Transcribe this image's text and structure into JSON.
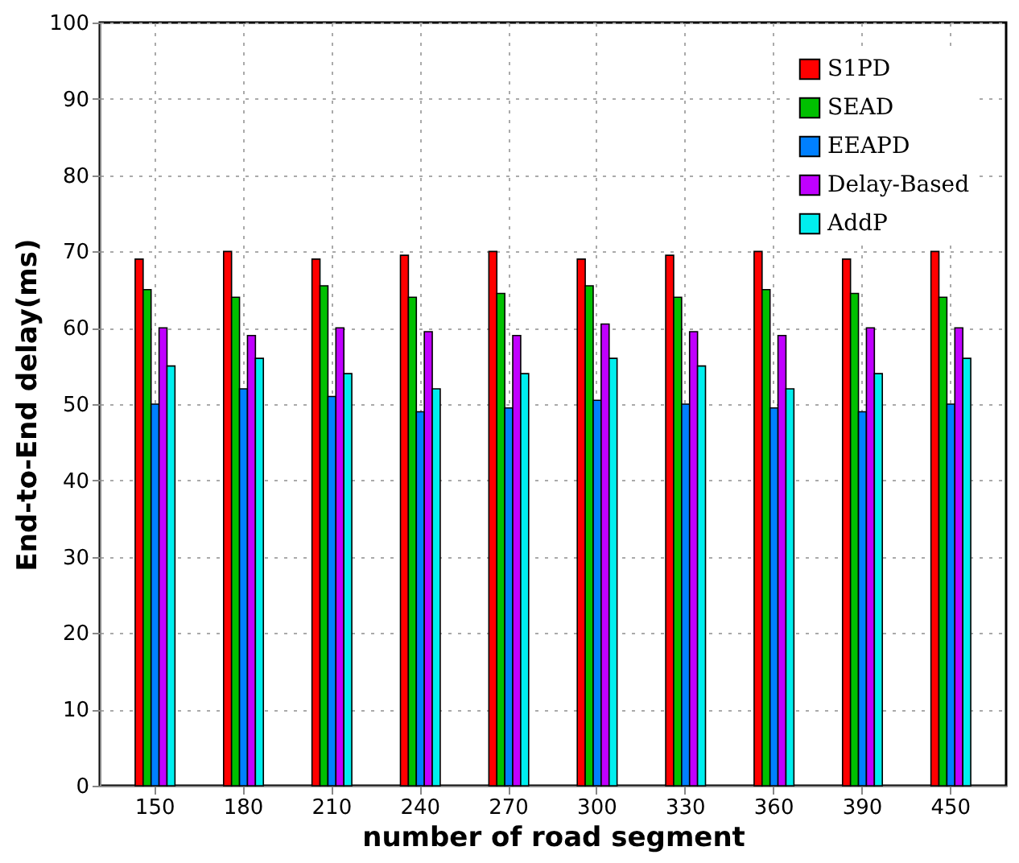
{
  "chart_data": {
    "type": "bar",
    "xlabel": "number of road segment",
    "ylabel": "End-to-End delay(ms)",
    "categories": [
      "150",
      "180",
      "210",
      "240",
      "270",
      "300",
      "330",
      "360",
      "390",
      "450"
    ],
    "series": [
      {
        "name": "S1PD",
        "color": "#ff0000",
        "values": [
          69,
          70,
          69,
          69.5,
          70,
          69,
          69.5,
          70,
          69,
          70
        ]
      },
      {
        "name": "SEAD",
        "color": "#00c000",
        "values": [
          65,
          64,
          65.5,
          64,
          64.5,
          65.5,
          64,
          65,
          64.5,
          64
        ]
      },
      {
        "name": "EEAPD",
        "color": "#0080ff",
        "values": [
          50,
          52,
          51,
          49,
          49.5,
          50.5,
          50,
          49.5,
          49,
          50
        ]
      },
      {
        "name": "Delay-Based",
        "color": "#c000ff",
        "values": [
          60,
          59,
          60,
          59.5,
          59,
          60.5,
          59.5,
          59,
          60,
          60
        ]
      },
      {
        "name": "AddP",
        "color": "#00eeee",
        "values": [
          55,
          56,
          54,
          52,
          54,
          56,
          55,
          52,
          54,
          56
        ]
      }
    ],
    "ylim": [
      0,
      100
    ],
    "yticks": [
      0,
      10,
      20,
      30,
      40,
      50,
      60,
      70,
      80,
      90,
      100
    ],
    "grid": true,
    "legend": "top right"
  }
}
